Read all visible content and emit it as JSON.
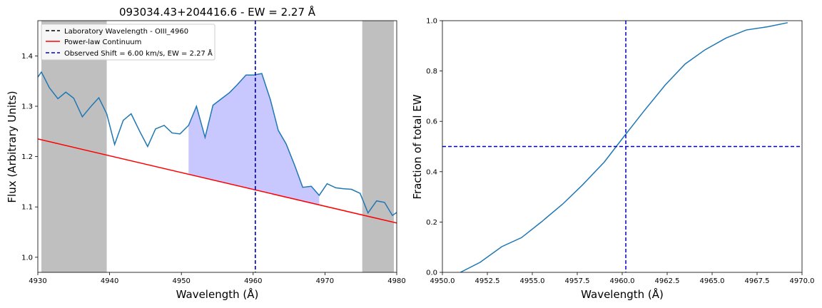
{
  "chart_data": [
    {
      "type": "line",
      "title": "093034.43+204416.6 - EW = 2.27 Å",
      "xlabel": "Wavelength (Å)",
      "ylabel": "Flux (Arbitrary Units)",
      "xlim": [
        4930,
        4980
      ],
      "ylim": [
        0.97,
        1.47
      ],
      "xticks": [
        "4930",
        "4940",
        "4950",
        "4960",
        "4970",
        "4980"
      ],
      "yticks": [
        "1.0",
        "1.1",
        "1.2",
        "1.3",
        "1.4"
      ],
      "grid": false,
      "legend_position": "top-left",
      "legend": [
        "Laboratory Wavelength - OIII_4960",
        "Power-law Continuum",
        "Observed Shift = 6.00 km/s, EW = 2.27 Å"
      ],
      "spectrum": {
        "color": "#1f77b4",
        "x": [
          4930.0,
          4930.5,
          4931.6,
          4932.8,
          4933.9,
          4935.0,
          4936.2,
          4937.3,
          4938.5,
          4939.6,
          4940.7,
          4941.9,
          4943.0,
          4944.2,
          4945.3,
          4946.4,
          4947.6,
          4948.7,
          4949.8,
          4951.0,
          4952.1,
          4953.3,
          4954.4,
          4955.5,
          4956.7,
          4957.8,
          4959.0,
          4960.1,
          4961.2,
          4962.4,
          4963.5,
          4964.6,
          4965.8,
          4966.9,
          4968.1,
          4969.2,
          4970.3,
          4971.5,
          4972.6,
          4973.7,
          4974.9,
          4976.0,
          4977.2,
          4978.3,
          4979.4,
          4980.0
        ],
        "y": [
          1.358,
          1.368,
          1.337,
          1.315,
          1.328,
          1.316,
          1.279,
          1.298,
          1.317,
          1.285,
          1.224,
          1.272,
          1.285,
          1.25,
          1.22,
          1.255,
          1.262,
          1.247,
          1.245,
          1.262,
          1.3,
          1.238,
          1.302,
          1.314,
          1.327,
          1.343,
          1.362,
          1.362,
          1.365,
          1.313,
          1.252,
          1.225,
          1.182,
          1.139,
          1.141,
          1.123,
          1.146,
          1.138,
          1.136,
          1.135,
          1.127,
          1.088,
          1.112,
          1.109,
          1.083,
          1.089
        ]
      },
      "continuum": {
        "color": "#ff0000",
        "x": [
          4930,
          4980
        ],
        "y": [
          1.235,
          1.068
        ]
      },
      "filled_region": {
        "color": "#c8c8ff",
        "x_start": 4951.0,
        "x_end": 4969.2
      },
      "shaded_regions": [
        {
          "x": [
            4930.5,
            4939.6
          ]
        },
        {
          "x": [
            4975.2,
            4979.6
          ]
        }
      ],
      "vlines": [
        {
          "x": 4960.3,
          "color": "#000000",
          "style": "dashed",
          "label": "Laboratory Wavelength - OIII_4960"
        },
        {
          "x": 4960.3,
          "color": "#0000cc",
          "style": "dashed",
          "label": "Observed Shift = 6.00 km/s, EW = 2.27 Å"
        }
      ]
    },
    {
      "type": "line",
      "title": "",
      "xlabel": "Wavelength (Å)",
      "ylabel": "Fraction of total EW",
      "xlim": [
        4950.0,
        4970.0
      ],
      "ylim": [
        0.0,
        1.0
      ],
      "xticks": [
        "4950.0",
        "4952.5",
        "4955.0",
        "4957.5",
        "4960.0",
        "4962.5",
        "4965.0",
        "4967.5",
        "4970.0"
      ],
      "yticks": [
        "0.0",
        "0.2",
        "0.4",
        "0.6",
        "0.8",
        "1.0"
      ],
      "grid": false,
      "series": [
        {
          "color": "#1f77b4",
          "x": [
            4951.0,
            4952.1,
            4953.3,
            4954.4,
            4955.5,
            4956.7,
            4957.8,
            4959.0,
            4960.1,
            4961.2,
            4962.4,
            4963.5,
            4964.6,
            4965.8,
            4966.9,
            4968.1,
            4969.2
          ],
          "y": [
            0.0,
            0.04,
            0.102,
            0.138,
            0.2,
            0.272,
            0.348,
            0.438,
            0.54,
            0.64,
            0.745,
            0.828,
            0.884,
            0.932,
            0.963,
            0.976,
            0.992
          ]
        }
      ],
      "vline": {
        "x": 4960.2,
        "color": "#0000cc",
        "style": "dashed"
      },
      "hline": {
        "y": 0.5,
        "color": "#0000cc",
        "style": "dashed"
      }
    }
  ]
}
